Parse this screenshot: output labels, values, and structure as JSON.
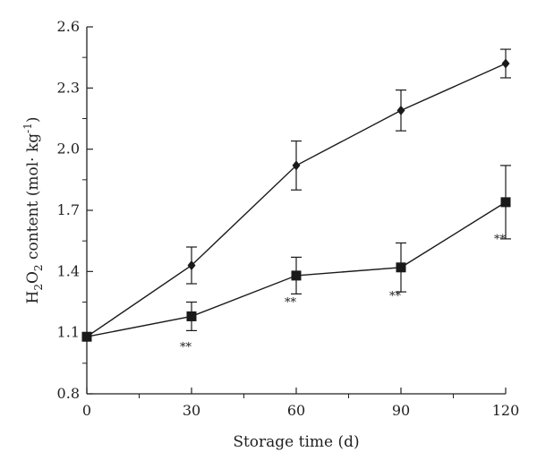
{
  "chart_data": {
    "type": "line",
    "xlabel": "Storage time (d)",
    "ylabel": {
      "prefix": "H",
      "sub1": "2",
      "mid": "O",
      "sub2": "2",
      "suffix": " content (mol· kg",
      "sup": "-1",
      "end": ")"
    },
    "xlim": [
      0,
      120
    ],
    "ylim": [
      0.8,
      2.6
    ],
    "x_ticks": [
      "0",
      "30",
      "60",
      "90",
      "120"
    ],
    "y_ticks": [
      "0.8",
      "1.1",
      "1.4",
      "1.7",
      "2.0",
      "2.3",
      "2.6"
    ],
    "grid": false,
    "x": [
      0,
      30,
      60,
      90,
      120
    ],
    "series": [
      {
        "marker": "diamond",
        "color": "#1a1a1a",
        "values": [
          1.08,
          1.43,
          1.92,
          2.19,
          2.42
        ],
        "errors": [
          0.0,
          0.09,
          0.12,
          0.1,
          0.07
        ]
      },
      {
        "marker": "square",
        "color": "#1a1a1a",
        "values": [
          1.08,
          1.18,
          1.38,
          1.42,
          1.74
        ],
        "errors": [
          0.0,
          0.07,
          0.09,
          0.12,
          0.18
        ]
      }
    ],
    "annotations": [
      {
        "text": "**",
        "x": 30,
        "y": 1.01
      },
      {
        "text": "**",
        "x": 60,
        "y": 1.23
      },
      {
        "text": "**",
        "x": 90,
        "y": 1.26
      },
      {
        "text": "**",
        "x": 120,
        "y": 1.54
      }
    ]
  }
}
